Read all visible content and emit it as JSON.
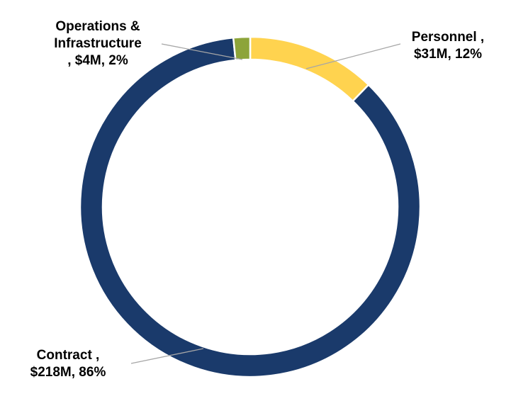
{
  "chart_data": {
    "type": "pie",
    "variant": "donut",
    "title": "",
    "slices": [
      {
        "name": "Personnel",
        "value": 31,
        "percent": 12,
        "color": "#FFD34F",
        "label_lines": [
          "Personnel ,",
          "$31M, 12%"
        ]
      },
      {
        "name": "Contract",
        "value": 218,
        "percent": 86,
        "color": "#1A3A6B",
        "label_lines": [
          "Contract ,",
          "$218M, 86%"
        ]
      },
      {
        "name": "Operations & Infrastructure",
        "value": 4,
        "percent": 2,
        "color": "#8DA43A",
        "label_lines": [
          "Operations &",
          "Infrastructure",
          ", $4M, 2%"
        ]
      }
    ],
    "units": "$M",
    "legend": "none",
    "data_labels": "outside-with-leader-lines"
  }
}
